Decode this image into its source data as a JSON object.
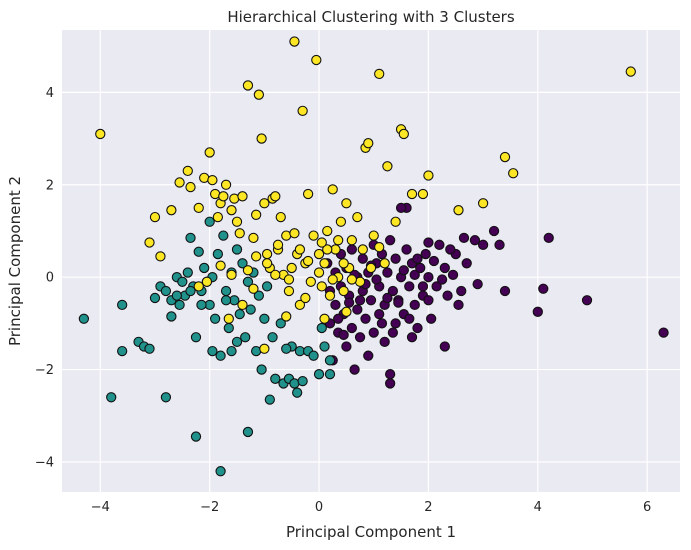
{
  "chart_data": {
    "type": "scatter",
    "title": "Hierarchical Clustering with 3 Clusters",
    "xlabel": "Principal Component 1",
    "ylabel": "Principal Component 2",
    "xlim": [
      -4.7,
      6.6
    ],
    "ylim": [
      -4.65,
      5.35
    ],
    "xticks": [
      -4,
      -2,
      0,
      2,
      4,
      6
    ],
    "yticks": [
      -4,
      -2,
      0,
      2,
      4
    ],
    "grid": true,
    "legend": "none",
    "colors": {
      "plot_bg": "#eaeaf2",
      "grid": "#ffffff",
      "edge": "#111111"
    },
    "series": [
      {
        "color": "#440154",
        "points": [
          [
            6.3,
            -1.2
          ],
          [
            4.9,
            -0.5
          ],
          [
            4.2,
            0.85
          ],
          [
            4.1,
            -0.25
          ],
          [
            4.0,
            -0.75
          ],
          [
            3.4,
            -0.3
          ],
          [
            3.3,
            0.7
          ],
          [
            3.2,
            1.0
          ],
          [
            3.0,
            0.7
          ],
          [
            2.9,
            -0.15
          ],
          [
            2.85,
            0.8
          ],
          [
            2.7,
            0.3
          ],
          [
            2.65,
            0.85
          ],
          [
            2.55,
            -0.6
          ],
          [
            2.5,
            0.5
          ],
          [
            2.45,
            0.05
          ],
          [
            2.4,
            0.6
          ],
          [
            2.35,
            -0.4
          ],
          [
            2.3,
            -1.5
          ],
          [
            2.3,
            0.2
          ],
          [
            2.2,
            0.7
          ],
          [
            2.15,
            -0.2
          ],
          [
            2.1,
            0.35
          ],
          [
            2.05,
            -0.9
          ],
          [
            2.0,
            0.0
          ],
          [
            2.0,
            0.75
          ],
          [
            1.9,
            -0.4
          ],
          [
            1.85,
            0.2
          ],
          [
            1.8,
            -1.1
          ],
          [
            1.75,
            -0.6
          ],
          [
            1.7,
            0.3
          ],
          [
            1.7,
            -1.3
          ],
          [
            1.65,
            -0.2
          ],
          [
            1.6,
            0.6
          ],
          [
            1.6,
            1.5
          ],
          [
            1.55,
            -0.8
          ],
          [
            1.5,
            1.5
          ],
          [
            1.5,
            0.0
          ],
          [
            1.45,
            -0.5
          ],
          [
            1.4,
            0.4
          ],
          [
            1.4,
            -1.0
          ],
          [
            1.35,
            -0.3
          ],
          [
            1.3,
            0.8
          ],
          [
            1.3,
            -2.1
          ],
          [
            1.25,
            0.1
          ],
          [
            1.2,
            -0.6
          ],
          [
            1.2,
            -1.4
          ],
          [
            1.15,
            0.5
          ],
          [
            1.1,
            -0.2
          ],
          [
            1.1,
            -0.8
          ],
          [
            1.05,
            0.3
          ],
          [
            1.0,
            -1.2
          ],
          [
            1.0,
            0.7
          ],
          [
            0.95,
            -0.5
          ],
          [
            0.9,
            0.1
          ],
          [
            0.9,
            -1.7
          ],
          [
            0.85,
            -0.9
          ],
          [
            0.8,
            0.4
          ],
          [
            0.8,
            -0.3
          ],
          [
            0.75,
            -1.3
          ],
          [
            0.7,
            0.0
          ],
          [
            0.7,
            -0.7
          ],
          [
            0.65,
            -2.0
          ],
          [
            0.6,
            0.6
          ],
          [
            0.6,
            -1.1
          ],
          [
            0.55,
            -0.4
          ],
          [
            0.5,
            0.2
          ],
          [
            0.5,
            -1.5
          ],
          [
            0.45,
            -0.8
          ],
          [
            0.4,
            -0.2
          ],
          [
            0.4,
            0.5
          ],
          [
            0.35,
            -1.2
          ],
          [
            0.3,
            -0.6
          ],
          [
            0.3,
            0.1
          ],
          [
            0.25,
            -1.8
          ],
          [
            0.2,
            -0.3
          ],
          [
            0.2,
            -1.0
          ],
          [
            0.15,
            0.3
          ],
          [
            1.3,
            -2.3
          ],
          [
            1.9,
            -0.2
          ],
          [
            1.8,
            0.4
          ],
          [
            2.25,
            -0.05
          ],
          [
            1.55,
            0.15
          ],
          [
            1.45,
            -0.55
          ],
          [
            1.35,
            -1.2
          ],
          [
            1.25,
            -0.45
          ],
          [
            1.15,
            -1.0
          ],
          [
            1.05,
            -0.05
          ],
          [
            0.95,
            0.25
          ],
          [
            0.85,
            -0.15
          ],
          [
            0.75,
            -0.5
          ],
          [
            0.65,
            0.05
          ],
          [
            0.55,
            -0.55
          ],
          [
            0.45,
            -1.25
          ],
          [
            0.35,
            -0.9
          ],
          [
            1.65,
            -0.9
          ],
          [
            1.75,
            0.05
          ],
          [
            1.95,
            0.5
          ],
          [
            2.6,
            -0.3
          ],
          [
            2.0,
            -0.5
          ]
        ]
      },
      {
        "color": "#21918c",
        "points": [
          [
            -4.3,
            -0.9
          ],
          [
            -3.8,
            -2.6
          ],
          [
            -3.6,
            -0.6
          ],
          [
            -3.6,
            -1.6
          ],
          [
            -3.3,
            -1.4
          ],
          [
            -3.2,
            -1.5
          ],
          [
            -3.1,
            -1.55
          ],
          [
            -3.0,
            -0.45
          ],
          [
            -2.9,
            -0.2
          ],
          [
            -2.8,
            -0.3
          ],
          [
            -2.8,
            -2.6
          ],
          [
            -2.7,
            -0.5
          ],
          [
            -2.7,
            -0.85
          ],
          [
            -2.6,
            0.0
          ],
          [
            -2.55,
            -0.6
          ],
          [
            -2.5,
            -0.1
          ],
          [
            -2.45,
            -0.4
          ],
          [
            -2.4,
            0.1
          ],
          [
            -2.35,
            0.85
          ],
          [
            -2.3,
            -0.2
          ],
          [
            -2.25,
            -1.3
          ],
          [
            -2.25,
            -3.45
          ],
          [
            -2.2,
            0.55
          ],
          [
            -2.15,
            -0.3
          ],
          [
            -2.1,
            0.2
          ],
          [
            -2.05,
            -0.1
          ],
          [
            -2.0,
            -0.6
          ],
          [
            -2.0,
            1.2
          ],
          [
            -1.95,
            0.0
          ],
          [
            -1.9,
            -0.9
          ],
          [
            -1.85,
            0.5
          ],
          [
            -1.8,
            -4.2
          ],
          [
            -1.8,
            -1.7
          ],
          [
            -1.75,
            0.9
          ],
          [
            -1.7,
            -0.3
          ],
          [
            -1.65,
            -1.1
          ],
          [
            -1.6,
            0.1
          ],
          [
            -1.6,
            -1.6
          ],
          [
            -1.55,
            -0.5
          ],
          [
            -1.5,
            0.6
          ],
          [
            -1.45,
            -0.8
          ],
          [
            -1.4,
            0.3
          ],
          [
            -1.35,
            -1.3
          ],
          [
            -1.3,
            -0.1
          ],
          [
            -1.3,
            -3.35
          ],
          [
            -1.25,
            -0.7
          ],
          [
            -1.2,
            0.1
          ],
          [
            -1.15,
            -1.6
          ],
          [
            -1.1,
            -0.4
          ],
          [
            -1.05,
            -2.0
          ],
          [
            -1.0,
            -0.9
          ],
          [
            -0.95,
            -0.2
          ],
          [
            -0.9,
            -2.65
          ],
          [
            -0.85,
            -1.3
          ],
          [
            -0.8,
            -2.2
          ],
          [
            -0.7,
            -1.0
          ],
          [
            -0.65,
            -2.3
          ],
          [
            -0.55,
            -2.2
          ],
          [
            -0.5,
            -1.5
          ],
          [
            -0.45,
            -2.3
          ],
          [
            -0.4,
            -2.5
          ],
          [
            -0.35,
            -1.6
          ],
          [
            -0.3,
            -2.25
          ],
          [
            -0.2,
            -1.6
          ],
          [
            -0.1,
            -1.7
          ],
          [
            0.0,
            -2.1
          ],
          [
            0.05,
            -1.1
          ],
          [
            0.1,
            -1.5
          ],
          [
            0.2,
            -2.1
          ],
          [
            0.2,
            -1.8
          ],
          [
            -2.6,
            -0.4
          ],
          [
            -1.7,
            -0.5
          ],
          [
            -1.5,
            -1.4
          ],
          [
            -1.95,
            -1.6
          ],
          [
            -2.15,
            -0.6
          ],
          [
            -2.35,
            -0.3
          ],
          [
            -0.6,
            -1.55
          ]
        ]
      },
      {
        "color": "#fde725",
        "points": [
          [
            -4.0,
            3.1
          ],
          [
            -3.1,
            0.75
          ],
          [
            -3.0,
            1.3
          ],
          [
            -2.9,
            0.45
          ],
          [
            -2.7,
            1.45
          ],
          [
            -2.55,
            2.05
          ],
          [
            -2.4,
            2.3
          ],
          [
            -2.35,
            1.95
          ],
          [
            -2.2,
            1.5
          ],
          [
            -2.1,
            2.15
          ],
          [
            -2.0,
            2.7
          ],
          [
            -1.95,
            2.1
          ],
          [
            -1.9,
            1.8
          ],
          [
            -1.85,
            1.3
          ],
          [
            -1.8,
            1.6
          ],
          [
            -1.75,
            1.75
          ],
          [
            -1.7,
            2.0
          ],
          [
            -1.6,
            1.45
          ],
          [
            -1.55,
            1.7
          ],
          [
            -1.5,
            1.2
          ],
          [
            -1.45,
            0.95
          ],
          [
            -1.4,
            1.75
          ],
          [
            -1.3,
            4.15
          ],
          [
            -1.2,
            0.85
          ],
          [
            -1.15,
            1.35
          ],
          [
            -1.1,
            3.95
          ],
          [
            -1.05,
            3.0
          ],
          [
            -1.0,
            1.6
          ],
          [
            -0.95,
            0.5
          ],
          [
            -0.9,
            0.2
          ],
          [
            -0.85,
            1.7
          ],
          [
            -0.8,
            1.75
          ],
          [
            -0.75,
            0.6
          ],
          [
            -0.7,
            1.3
          ],
          [
            -0.65,
            0.05
          ],
          [
            -0.6,
            0.9
          ],
          [
            -0.55,
            -0.3
          ],
          [
            -0.5,
            0.2
          ],
          [
            -0.45,
            5.1
          ],
          [
            -0.4,
            0.5
          ],
          [
            -0.35,
            -0.6
          ],
          [
            -0.3,
            3.6
          ],
          [
            -0.25,
            0.3
          ],
          [
            -0.2,
            1.8
          ],
          [
            -0.15,
            -0.1
          ],
          [
            -0.1,
            0.9
          ],
          [
            -0.05,
            4.7
          ],
          [
            0.0,
            0.5
          ],
          [
            0.05,
            -0.2
          ],
          [
            0.1,
            0.3
          ],
          [
            0.15,
            1.0
          ],
          [
            0.2,
            -0.4
          ],
          [
            0.25,
            1.9
          ],
          [
            0.3,
            0.6
          ],
          [
            0.35,
            0.0
          ],
          [
            0.4,
            1.2
          ],
          [
            0.45,
            -0.3
          ],
          [
            0.5,
            1.6
          ],
          [
            0.55,
            0.2
          ],
          [
            0.6,
            0.8
          ],
          [
            0.7,
            1.3
          ],
          [
            0.75,
            -0.1
          ],
          [
            0.8,
            0.6
          ],
          [
            0.85,
            2.8
          ],
          [
            0.9,
            2.9
          ],
          [
            1.0,
            0.9
          ],
          [
            1.1,
            4.4
          ],
          [
            1.2,
            0.3
          ],
          [
            1.25,
            2.4
          ],
          [
            1.4,
            1.2
          ],
          [
            1.5,
            3.2
          ],
          [
            1.55,
            3.1
          ],
          [
            1.7,
            1.8
          ],
          [
            1.9,
            1.8
          ],
          [
            2.0,
            2.2
          ],
          [
            2.55,
            1.45
          ],
          [
            3.0,
            1.6
          ],
          [
            3.4,
            2.6
          ],
          [
            3.55,
            2.25
          ],
          [
            5.7,
            4.45
          ],
          [
            -1.3,
            0.15
          ],
          [
            -1.0,
            -1.55
          ],
          [
            -1.8,
            0.25
          ],
          [
            -2.2,
            -0.2
          ],
          [
            -2.05,
            -0.1
          ],
          [
            -1.4,
            -0.6
          ],
          [
            -0.8,
            0.05
          ],
          [
            -0.6,
            -0.85
          ],
          [
            -0.35,
            0.6
          ],
          [
            -0.2,
            0.35
          ],
          [
            0.0,
            0.1
          ],
          [
            0.15,
            0.6
          ],
          [
            0.35,
            0.8
          ],
          [
            -1.2,
            -0.25
          ],
          [
            -0.95,
            0.3
          ],
          [
            -0.75,
            0.7
          ],
          [
            -1.6,
            0.05
          ],
          [
            -1.15,
            0.45
          ],
          [
            -0.45,
            0.95
          ],
          [
            -1.65,
            -0.9
          ],
          [
            0.6,
            -0.05
          ],
          [
            0.45,
            0.3
          ],
          [
            0.95,
            0.2
          ],
          [
            1.1,
            0.65
          ],
          [
            0.5,
            -0.75
          ],
          [
            -0.55,
            -0.05
          ],
          [
            -0.25,
            -0.45
          ],
          [
            0.1,
            -0.9
          ],
          [
            0.25,
            -0.05
          ],
          [
            0.05,
            0.75
          ]
        ]
      }
    ]
  }
}
